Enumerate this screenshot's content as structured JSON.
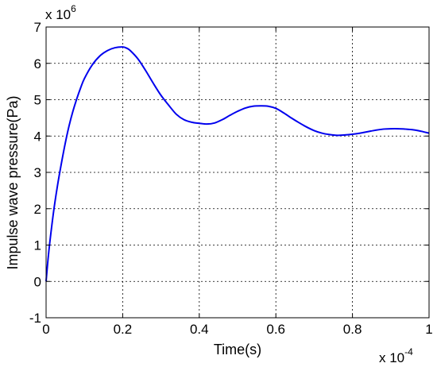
{
  "chart_data": {
    "type": "line",
    "title": "",
    "xlabel": "Time(s)",
    "ylabel": "Impulse wave pressure(Pa)",
    "x_multiplier": {
      "base": "x 10",
      "exponent": "-4"
    },
    "y_multiplier": {
      "base": "x 10",
      "exponent": "6"
    },
    "xlim": [
      0,
      1
    ],
    "ylim": [
      -1,
      7
    ],
    "x_ticks": [
      0,
      0.2,
      0.4,
      0.6,
      0.8,
      1
    ],
    "x_tick_labels": [
      "0",
      "0.2",
      "0.4",
      "0.6",
      "0.8",
      "1"
    ],
    "y_ticks": [
      -1,
      0,
      1,
      2,
      3,
      4,
      5,
      6,
      7
    ],
    "y_tick_labels": [
      "-1",
      "0",
      "1",
      "2",
      "3",
      "4",
      "5",
      "6",
      "7"
    ],
    "grid": true,
    "color": "#0000ee",
    "series": [
      {
        "x": [
          0,
          0.005,
          0.01,
          0.02,
          0.03,
          0.04,
          0.05,
          0.06,
          0.07,
          0.08,
          0.09,
          0.1,
          0.12,
          0.14,
          0.16,
          0.18,
          0.2,
          0.21,
          0.22,
          0.24,
          0.26,
          0.28,
          0.3,
          0.32,
          0.34,
          0.36,
          0.38,
          0.4,
          0.42,
          0.44,
          0.46,
          0.48,
          0.5,
          0.52,
          0.54,
          0.56,
          0.58,
          0.6,
          0.62,
          0.64,
          0.66,
          0.68,
          0.7,
          0.72,
          0.74,
          0.76,
          0.78,
          0.8,
          0.82,
          0.84,
          0.86,
          0.88,
          0.9,
          0.92,
          0.94,
          0.96,
          0.98,
          1.0
        ],
        "y": [
          0,
          0.6,
          1.1,
          1.95,
          2.65,
          3.25,
          3.8,
          4.28,
          4.68,
          5.02,
          5.32,
          5.58,
          5.95,
          6.2,
          6.35,
          6.43,
          6.45,
          6.42,
          6.35,
          6.12,
          5.8,
          5.45,
          5.12,
          4.85,
          4.6,
          4.45,
          4.38,
          4.35,
          4.33,
          4.36,
          4.45,
          4.57,
          4.68,
          4.77,
          4.82,
          4.83,
          4.82,
          4.76,
          4.64,
          4.5,
          4.37,
          4.25,
          4.15,
          4.08,
          4.04,
          4.02,
          4.03,
          4.05,
          4.08,
          4.12,
          4.16,
          4.19,
          4.2,
          4.2,
          4.19,
          4.17,
          4.13,
          4.08
        ]
      }
    ]
  }
}
